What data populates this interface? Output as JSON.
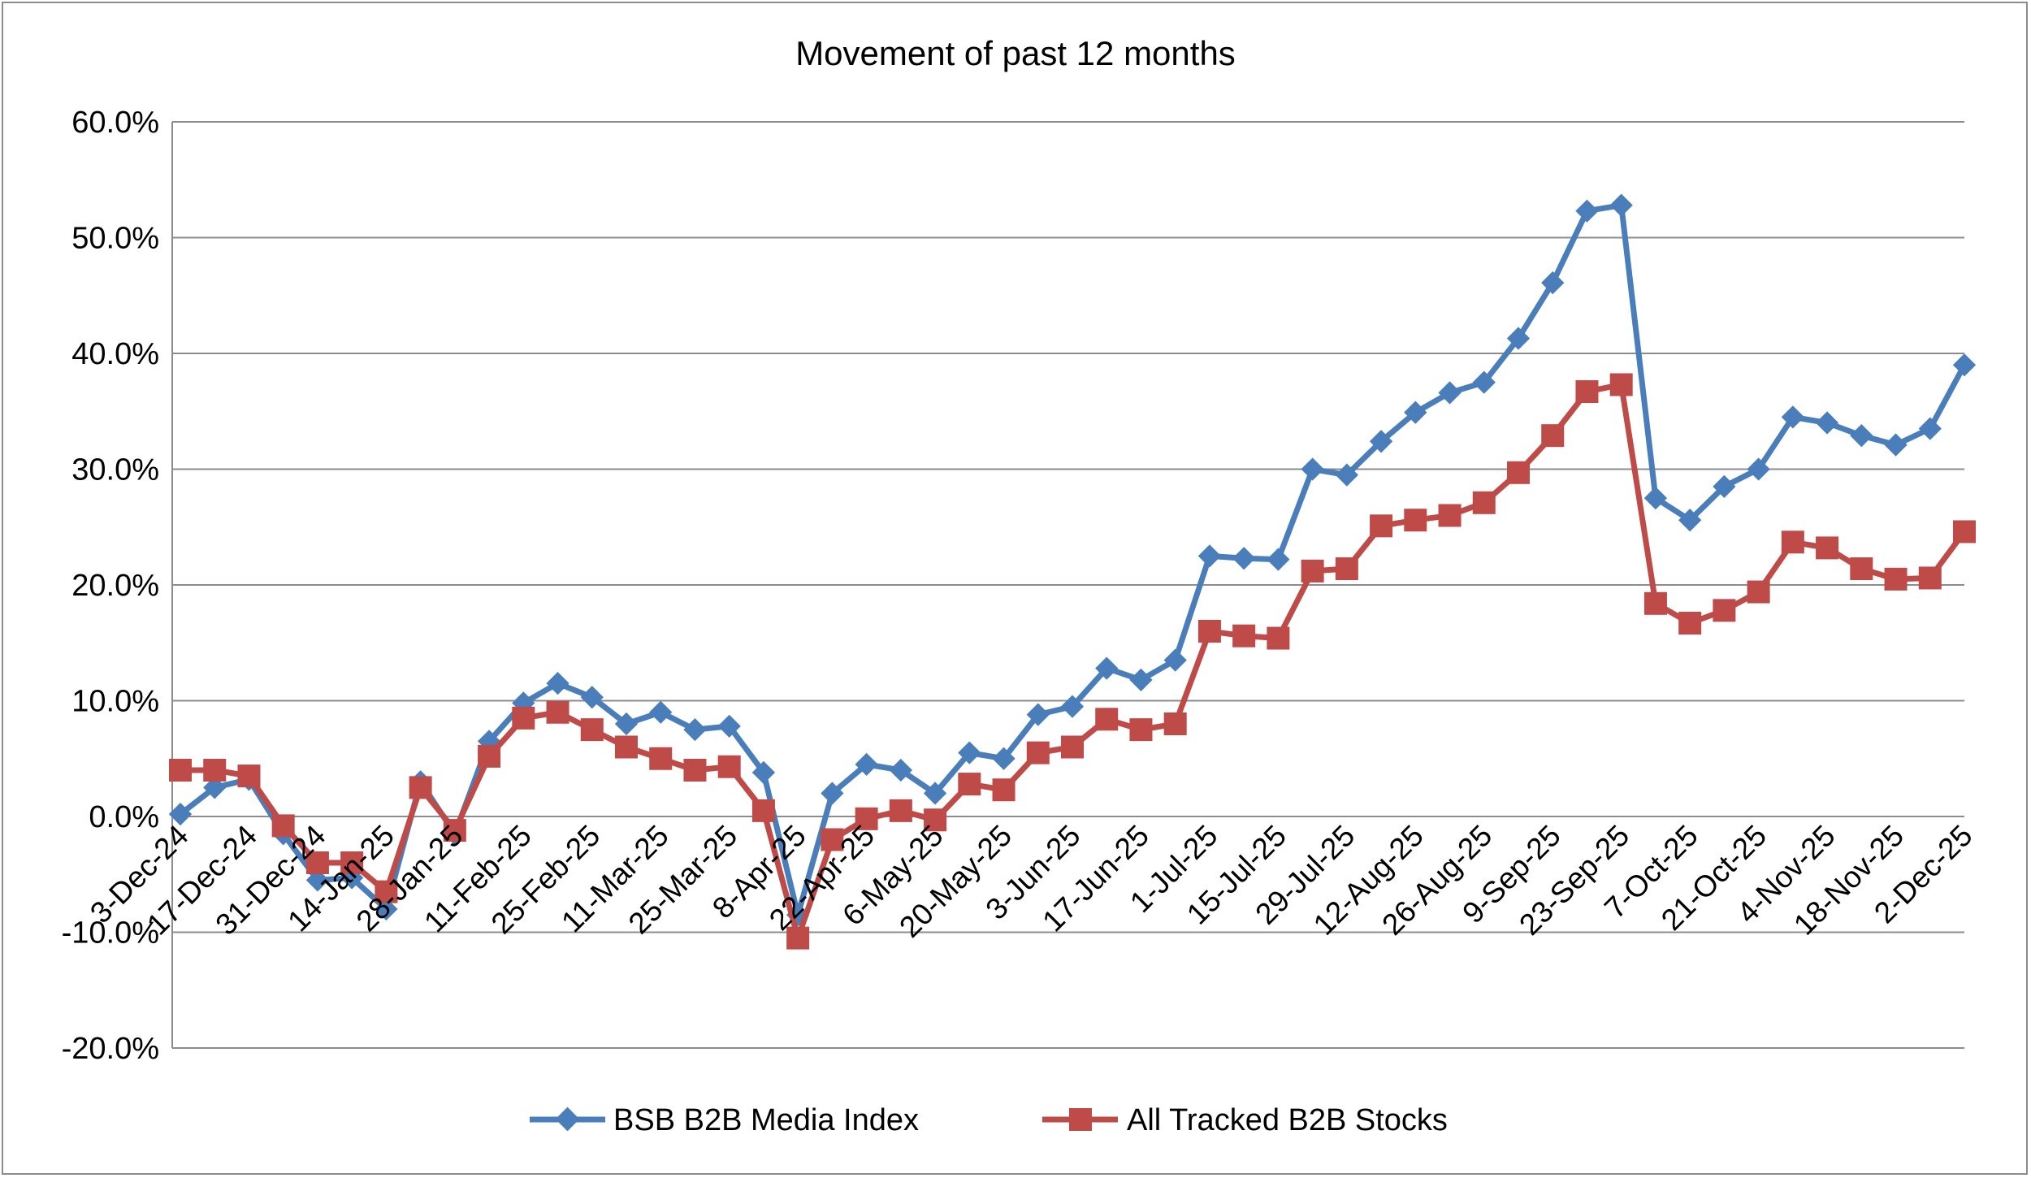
{
  "chart_data": {
    "type": "line",
    "title": "Movement of past 12 months",
    "xlabel": "",
    "ylabel": "",
    "ylim": [
      -20,
      60
    ],
    "y_ticks": [
      "-20.0%",
      "-10.0%",
      "0.0%",
      "10.0%",
      "20.0%",
      "30.0%",
      "40.0%",
      "50.0%",
      "60.0%"
    ],
    "y_tick_values": [
      -20,
      -10,
      0,
      10,
      20,
      30,
      40,
      50,
      60
    ],
    "grid": true,
    "legend_position": "bottom",
    "x_tick_labels": [
      "3-Dec-24",
      "17-Dec-24",
      "31-Dec-24",
      "14-Jan-25",
      "28-Jan-25",
      "11-Feb-25",
      "25-Feb-25",
      "11-Mar-25",
      "25-Mar-25",
      "8-Apr-25",
      "22-Apr-25",
      "6-May-25",
      "20-May-25",
      "3-Jun-25",
      "17-Jun-25",
      "1-Jul-25",
      "15-Jul-25",
      "29-Jul-25",
      "12-Aug-25",
      "26-Aug-25",
      "9-Sep-25",
      "23-Sep-25",
      "7-Oct-25",
      "21-Oct-25",
      "4-Nov-25",
      "18-Nov-25",
      "2-Dec-25"
    ],
    "series": [
      {
        "name": "BSB B2B Media Index",
        "color": "#4a7ebb",
        "marker": "diamond",
        "values": [
          0.2,
          2.5,
          3.2,
          -1.5,
          -5.5,
          -5.3,
          -8.0,
          3.0,
          -1.5,
          6.5,
          9.8,
          11.5,
          10.3,
          8.0,
          9.0,
          7.5,
          7.8,
          3.8,
          -8.5,
          2.0,
          4.5,
          4.0,
          2.0,
          5.5,
          5.0,
          8.8,
          9.5,
          12.8,
          11.8,
          13.5,
          22.5,
          22.3,
          22.2,
          30.0,
          29.5,
          32.4,
          34.9,
          36.6,
          37.5,
          41.3,
          46.1,
          52.3,
          52.8,
          27.5,
          25.6,
          28.5,
          30.0,
          34.5,
          34.0,
          32.9,
          32.1,
          33.5,
          39.0
        ]
      },
      {
        "name": "All Tracked B2B Stocks",
        "color": "#be4b48",
        "marker": "square",
        "values": [
          4.0,
          4.0,
          3.5,
          -0.8,
          -4.0,
          -4.0,
          -6.5,
          2.5,
          -1.2,
          5.2,
          8.5,
          9.0,
          7.5,
          6.0,
          5.0,
          4.0,
          4.3,
          0.5,
          -10.5,
          -2.0,
          -0.2,
          0.5,
          -0.3,
          2.8,
          2.3,
          5.5,
          6.0,
          8.4,
          7.5,
          8.0,
          16.0,
          15.6,
          15.4,
          21.2,
          21.4,
          25.1,
          25.6,
          26.0,
          27.1,
          29.7,
          32.9,
          36.7,
          37.3,
          18.4,
          16.7,
          17.8,
          19.4,
          23.7,
          23.2,
          21.4,
          20.5,
          20.6,
          24.6
        ]
      }
    ]
  }
}
